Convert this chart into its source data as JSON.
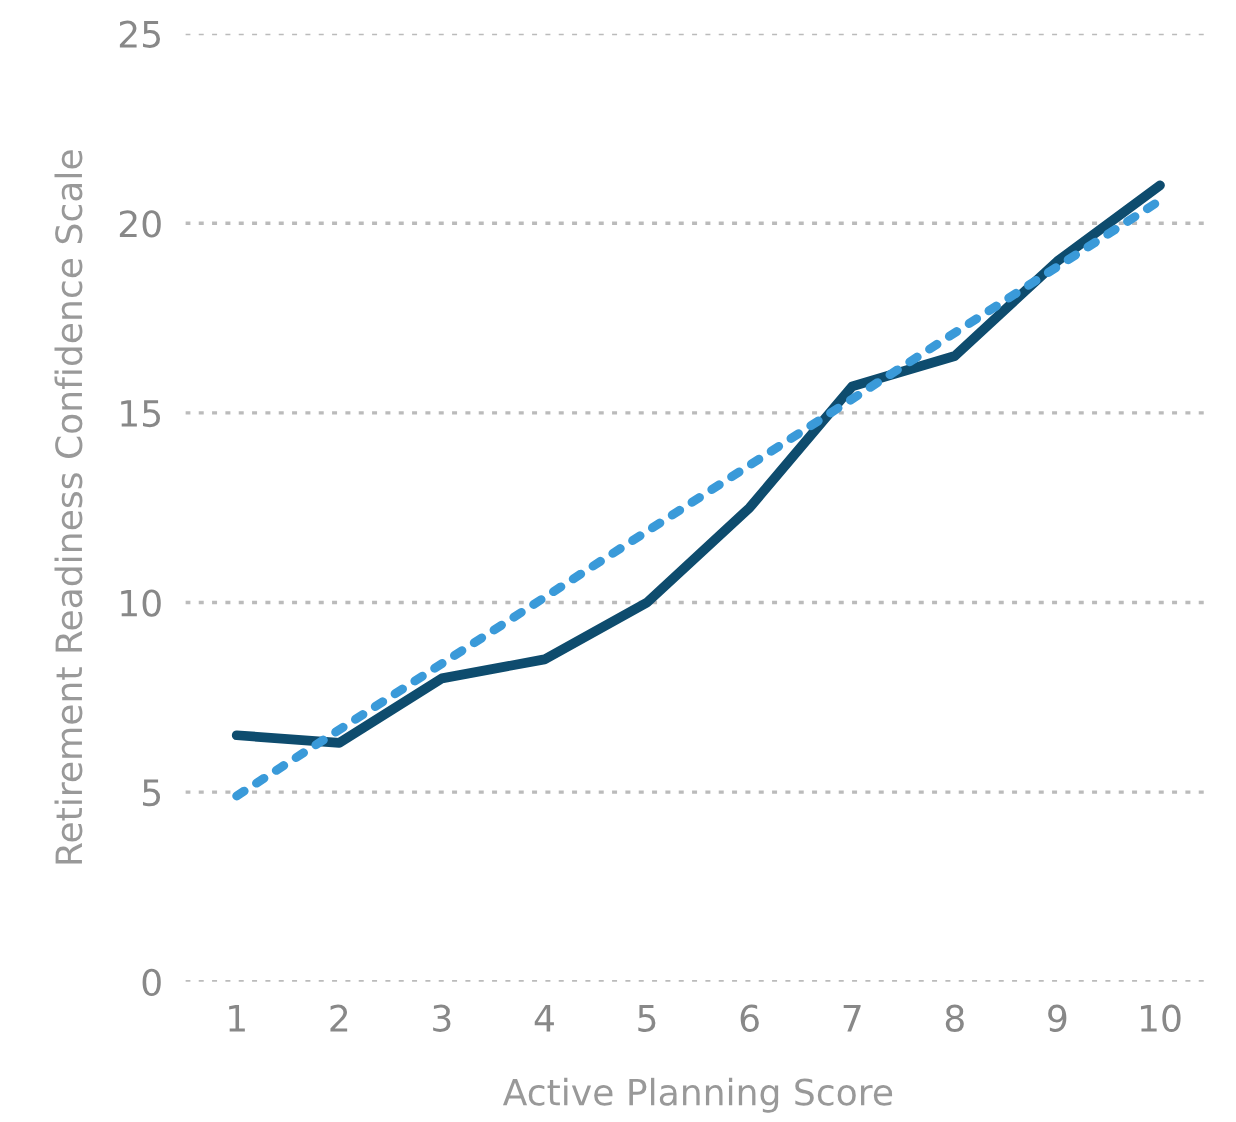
{
  "chart_data": {
    "type": "line",
    "xlabel": "Active Planning Score",
    "ylabel": "Retirement Readiness Confidence Scale",
    "categories": [
      "1",
      "2",
      "3",
      "4",
      "5",
      "6",
      "7",
      "8",
      "9",
      "10"
    ],
    "series": [
      {
        "color": "#0e4c6e",
        "values": [
          6.5,
          6.3,
          8.0,
          8.5,
          10.0,
          12.5,
          15.7,
          16.5,
          19.0,
          21.0
        ],
        "line_style": "solid"
      },
      {
        "type": "line",
        "color": "#3a9ad9",
        "x": [
          "1",
          "10"
        ],
        "values": [
          4.9,
          20.6
        ],
        "line_style": "dotted"
      }
    ],
    "ylim": [
      0,
      25
    ],
    "yticks": [
      0,
      5,
      10,
      15,
      20,
      25
    ],
    "grid": "y",
    "marker": "none"
  }
}
